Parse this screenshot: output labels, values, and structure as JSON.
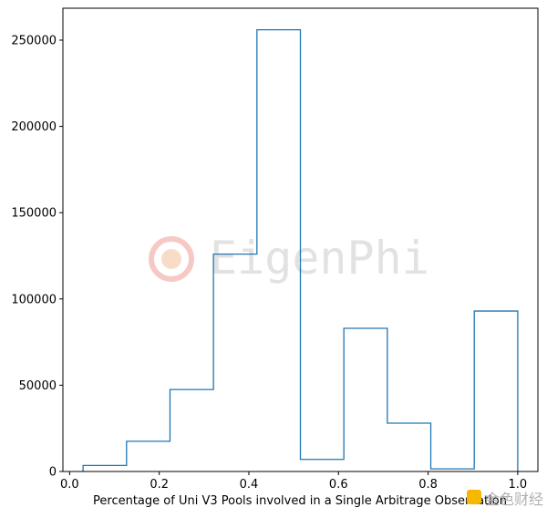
{
  "chart_data": {
    "type": "bar",
    "style": "step-histogram",
    "bin_edges": [
      0.03,
      0.127,
      0.224,
      0.321,
      0.418,
      0.515,
      0.612,
      0.709,
      0.806,
      0.903,
      1.0
    ],
    "values": [
      3500,
      17500,
      47500,
      126000,
      256000,
      7000,
      83000,
      28000,
      1500,
      93000
    ],
    "xlabel": "Percentage of Uni V3 Pools involved in a Single Arbitrage Observation",
    "ylabel": "",
    "title": "",
    "xlim": [
      -0.015,
      1.045
    ],
    "ylim": [
      0,
      268500
    ],
    "x_ticks": [
      "0.0",
      "0.2",
      "0.4",
      "0.6",
      "0.8",
      "1.0"
    ],
    "y_ticks": [
      "0",
      "50000",
      "100000",
      "150000",
      "200000",
      "250000"
    ],
    "line_color": "#1f77b4",
    "grid": false
  },
  "watermark": {
    "center_text": "EigenPhi",
    "corner_text": "金色财经"
  }
}
